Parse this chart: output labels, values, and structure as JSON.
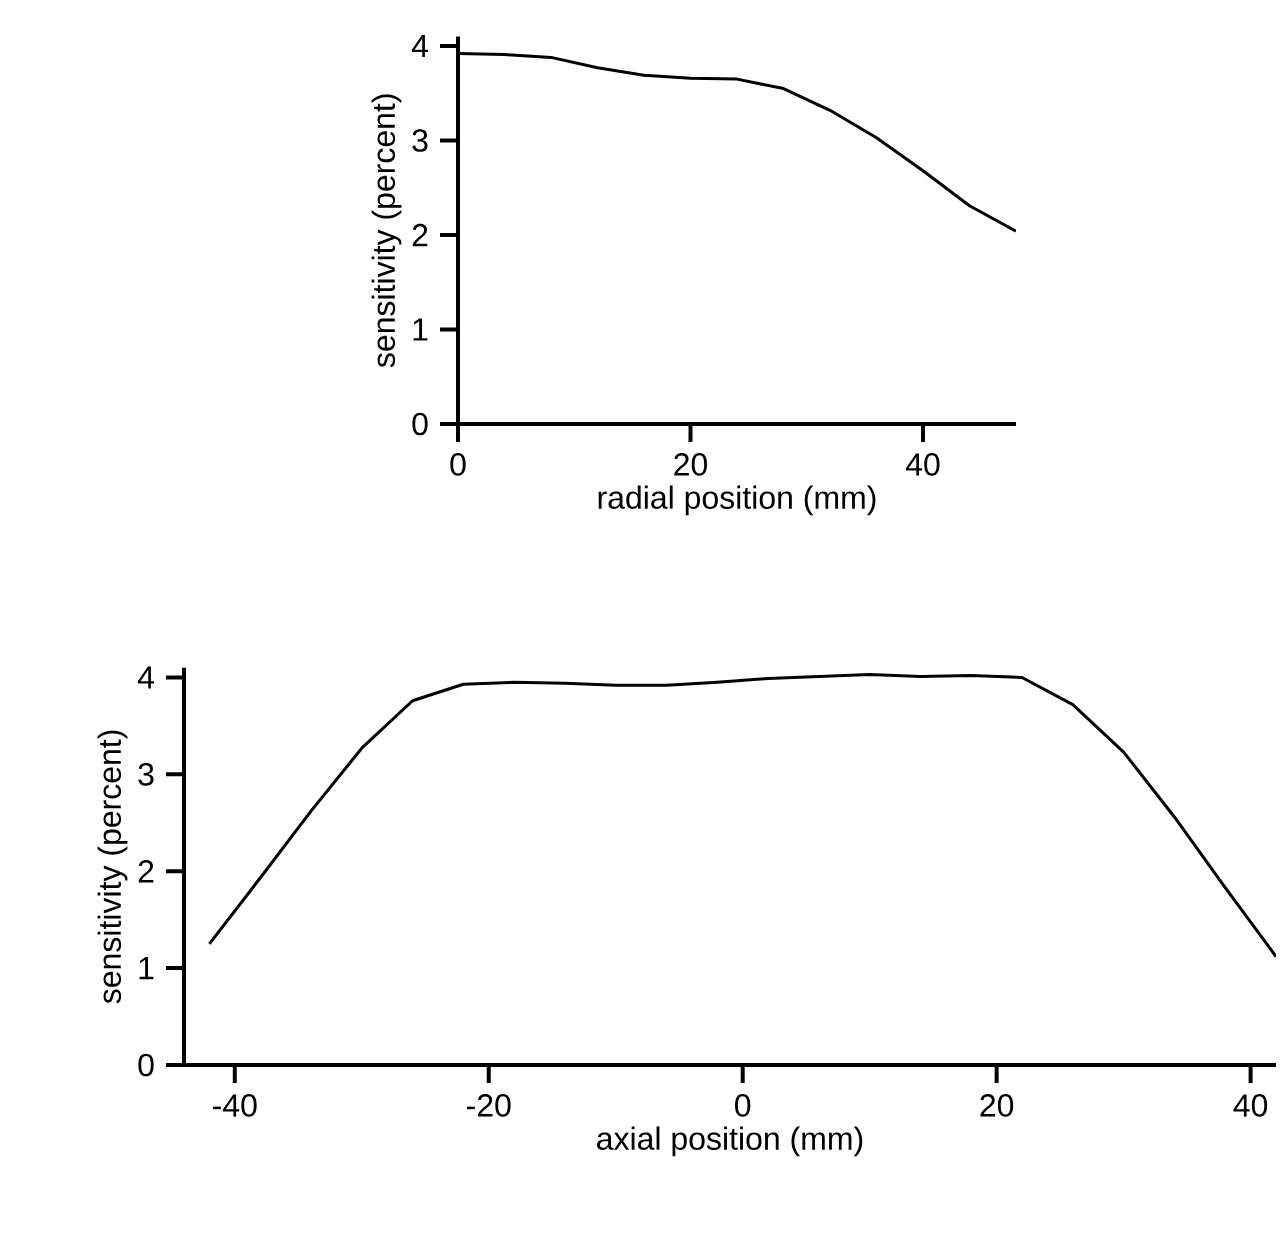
{
  "chart_data": [
    {
      "type": "line",
      "xlabel": "radial position (mm)",
      "ylabel": "sensitivity (percent)",
      "xlim": [
        0,
        48
      ],
      "ylim": [
        0,
        4.1
      ],
      "xticks": [
        0,
        20,
        40
      ],
      "yticks": [
        0,
        1,
        2,
        3,
        4
      ],
      "marker": "none",
      "line_style": "solid",
      "x": [
        0,
        4,
        8,
        12,
        16,
        20,
        24,
        28,
        32,
        36,
        40,
        44,
        48
      ],
      "series": [
        {
          "color": "#000000",
          "values": [
            3.92,
            3.91,
            3.88,
            3.77,
            3.69,
            3.66,
            3.65,
            3.55,
            3.32,
            3.03,
            2.68,
            2.31,
            2.04
          ]
        }
      ]
    },
    {
      "type": "line",
      "xlabel": "axial position (mm)",
      "ylabel": "sensitivity (percent)",
      "xlim": [
        -44,
        42
      ],
      "ylim": [
        0,
        4.1
      ],
      "xticks": [
        -40,
        -20,
        0,
        20,
        40
      ],
      "yticks": [
        0,
        1,
        2,
        3,
        4
      ],
      "marker": "none",
      "line_style": "solid",
      "x": [
        -42,
        -38,
        -34,
        -30,
        -26,
        -22,
        -18,
        -14,
        -10,
        -6,
        -2,
        2,
        6,
        10,
        14,
        18,
        22,
        26,
        30,
        34,
        38,
        42
      ],
      "series": [
        {
          "color": "#000000",
          "values": [
            1.25,
            1.93,
            2.62,
            3.27,
            3.76,
            3.93,
            3.95,
            3.94,
            3.92,
            3.92,
            3.95,
            3.99,
            4.01,
            4.03,
            4.01,
            4.02,
            4.0,
            3.72,
            3.23,
            2.56,
            1.83,
            1.12
          ]
        }
      ]
    }
  ]
}
